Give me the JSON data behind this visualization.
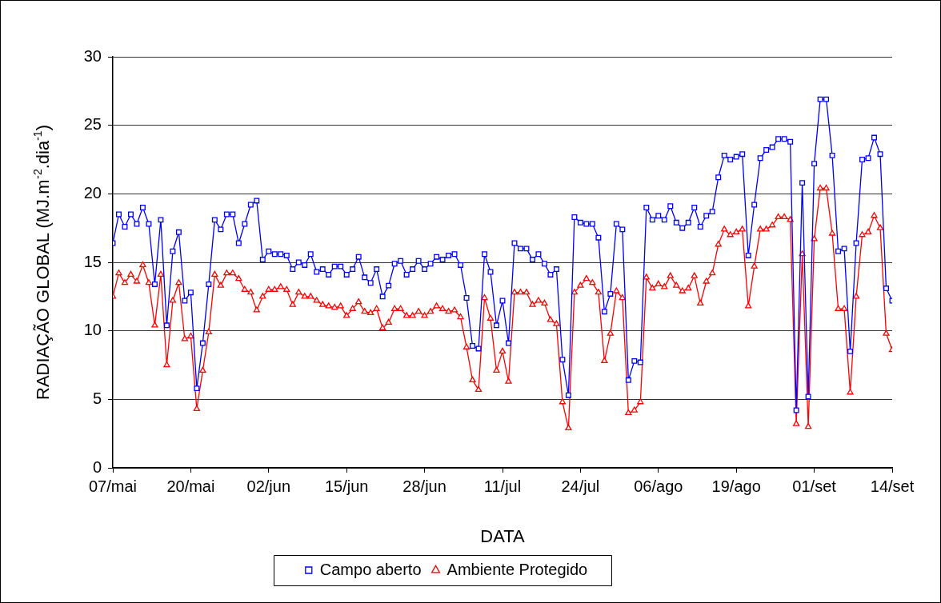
{
  "chart_data": {
    "type": "line",
    "xlabel": "DATA",
    "ylabel": "RADIAÇÃO GLOBAL (MJ.m$^{-2}$.dia$^{-1}$)",
    "x": [
      "--05-07",
      "--05-08",
      "--05-09",
      "--05-10",
      "--05-11",
      "--05-12",
      "--05-13",
      "--05-14",
      "--05-15",
      "--05-16",
      "--05-17",
      "--05-18",
      "--05-19",
      "--05-20",
      "--05-21",
      "--05-22",
      "--05-23",
      "--05-24",
      "--05-25",
      "--05-26",
      "--05-27",
      "--05-28",
      "--05-29",
      "--05-30",
      "--05-31",
      "--06-01",
      "--06-02",
      "--06-03",
      "--06-04",
      "--06-05",
      "--06-06",
      "--06-07",
      "--06-08",
      "--06-09",
      "--06-10",
      "--06-11",
      "--06-12",
      "--06-13",
      "--06-14",
      "--06-15",
      "--06-16",
      "--06-17",
      "--06-18",
      "--06-19",
      "--06-20",
      "--06-21",
      "--06-22",
      "--06-23",
      "--06-24",
      "--06-25",
      "--06-26",
      "--06-27",
      "--06-28",
      "--06-29",
      "--06-30",
      "--07-01",
      "--07-02",
      "--07-03",
      "--07-04",
      "--07-05",
      "--07-06",
      "--07-07",
      "--07-08",
      "--07-09",
      "--07-10",
      "--07-11",
      "--07-12",
      "--07-13",
      "--07-14",
      "--07-15",
      "--07-16",
      "--07-17",
      "--07-18",
      "--07-19",
      "--07-20",
      "--07-21",
      "--07-22",
      "--07-23",
      "--07-24",
      "--07-25",
      "--07-26",
      "--07-27",
      "--07-28",
      "--07-29",
      "--07-30",
      "--07-31",
      "--08-01",
      "--08-02",
      "--08-03",
      "--08-04",
      "--08-05",
      "--08-06",
      "--08-07",
      "--08-08",
      "--08-09",
      "--08-10",
      "--08-11",
      "--08-12",
      "--08-13",
      "--08-14",
      "--08-15",
      "--08-16",
      "--08-17",
      "--08-18",
      "--08-19",
      "--08-20",
      "--08-21",
      "--08-22",
      "--08-23",
      "--08-24",
      "--08-25",
      "--08-26",
      "--08-27",
      "--08-28",
      "--08-29",
      "--08-30",
      "--08-31",
      "--09-01",
      "--09-02",
      "--09-03",
      "--09-04",
      "--09-05",
      "--09-06",
      "--09-07",
      "--09-08",
      "--09-09",
      "--09-10",
      "--09-11",
      "--09-12",
      "--09-13",
      "--09-14"
    ],
    "series": [
      {
        "name": "Campo aberto",
        "color": "#0000ff",
        "marker": "square",
        "values": [
          16.4,
          18.5,
          17.6,
          18.5,
          17.8,
          19.0,
          17.8,
          13.4,
          18.1,
          10.4,
          15.8,
          17.2,
          12.2,
          12.8,
          5.8,
          9.1,
          13.4,
          18.1,
          17.4,
          18.5,
          18.5,
          16.4,
          17.8,
          19.2,
          19.5,
          15.2,
          15.8,
          15.6,
          15.6,
          15.5,
          14.5,
          15.0,
          14.8,
          15.6,
          14.3,
          14.5,
          14.1,
          14.7,
          14.7,
          14.1,
          14.5,
          15.4,
          13.9,
          13.5,
          14.5,
          12.5,
          13.3,
          14.9,
          15.1,
          14.1,
          14.5,
          15.1,
          14.5,
          14.9,
          15.4,
          15.2,
          15.5,
          15.6,
          14.8,
          12.4,
          8.9,
          8.7,
          15.6,
          14.3,
          10.4,
          12.2,
          9.1,
          16.4,
          16.0,
          16.0,
          15.2,
          15.6,
          14.9,
          14.1,
          14.5,
          7.9,
          5.3,
          18.3,
          17.9,
          17.8,
          17.8,
          16.8,
          11.4,
          12.7,
          17.8,
          17.4,
          6.4,
          7.8,
          7.7,
          19.0,
          18.1,
          18.4,
          18.1,
          19.1,
          17.9,
          17.5,
          17.9,
          19.0,
          17.6,
          18.4,
          18.7,
          21.2,
          22.8,
          22.5,
          22.7,
          22.9,
          15.5,
          19.2,
          22.6,
          23.2,
          23.4,
          24.0,
          24.0,
          23.8,
          4.2,
          20.8,
          5.2,
          22.2,
          26.9,
          26.9,
          22.8,
          15.8,
          16.0,
          8.5,
          16.4,
          22.5,
          22.6,
          24.1,
          22.9,
          13.1,
          12.2
        ]
      },
      {
        "name": "Ambiente Protegido",
        "color": "#ff0000",
        "marker": "triangle",
        "values": [
          12.5,
          14.2,
          13.5,
          14.1,
          13.6,
          14.8,
          13.5,
          10.4,
          14.1,
          7.5,
          12.2,
          13.5,
          9.4,
          9.6,
          4.3,
          7.1,
          9.9,
          14.1,
          13.3,
          14.2,
          14.2,
          13.8,
          13.0,
          12.8,
          11.5,
          12.5,
          13.0,
          13.0,
          13.2,
          13.0,
          11.9,
          12.8,
          12.5,
          12.5,
          12.2,
          11.9,
          11.8,
          11.7,
          11.8,
          11.1,
          11.6,
          12.1,
          11.4,
          11.3,
          11.6,
          10.2,
          10.6,
          11.6,
          11.6,
          11.1,
          11.1,
          11.4,
          11.1,
          11.4,
          11.8,
          11.6,
          11.4,
          11.5,
          11.0,
          8.8,
          6.4,
          5.7,
          12.4,
          10.9,
          7.1,
          8.5,
          6.3,
          12.8,
          12.8,
          12.8,
          11.9,
          12.2,
          12.0,
          10.8,
          10.5,
          4.8,
          2.9,
          12.8,
          13.3,
          13.8,
          13.5,
          12.8,
          7.8,
          9.8,
          12.9,
          12.4,
          4.0,
          4.2,
          4.8,
          13.9,
          13.1,
          13.4,
          13.2,
          14.0,
          13.3,
          12.9,
          13.1,
          14.0,
          12.0,
          13.6,
          14.2,
          16.3,
          17.4,
          17.0,
          17.2,
          17.4,
          11.8,
          14.7,
          17.4,
          17.4,
          17.7,
          18.3,
          18.3,
          18.1,
          3.2,
          15.6,
          3.0,
          16.7,
          20.4,
          20.4,
          17.1,
          11.6,
          11.6,
          5.5,
          12.5,
          17.0,
          17.2,
          18.4,
          17.5,
          9.8,
          8.6
        ]
      }
    ],
    "xlim": [
      "--05-07",
      "--09-14"
    ],
    "xticks": [
      {
        "value": "--05-07",
        "label": "07/mai"
      },
      {
        "value": "--05-20",
        "label": "20/mai"
      },
      {
        "value": "--06-02",
        "label": "02/jun"
      },
      {
        "value": "--06-15",
        "label": "15/jun"
      },
      {
        "value": "--06-28",
        "label": "28/jun"
      },
      {
        "value": "--07-11",
        "label": "11/jul"
      },
      {
        "value": "--07-24",
        "label": "24/jul"
      },
      {
        "value": "--08-06",
        "label": "06/ago"
      },
      {
        "value": "--08-19",
        "label": "19/ago"
      },
      {
        "value": "--09-01",
        "label": "01/set"
      },
      {
        "value": "--09-14",
        "label": "14/set"
      }
    ],
    "ylim": [
      0,
      30
    ],
    "yticks": [
      0,
      5,
      10,
      15,
      20,
      25,
      30
    ],
    "grid": "y",
    "legend": "bottom",
    "line_style": "solid"
  }
}
